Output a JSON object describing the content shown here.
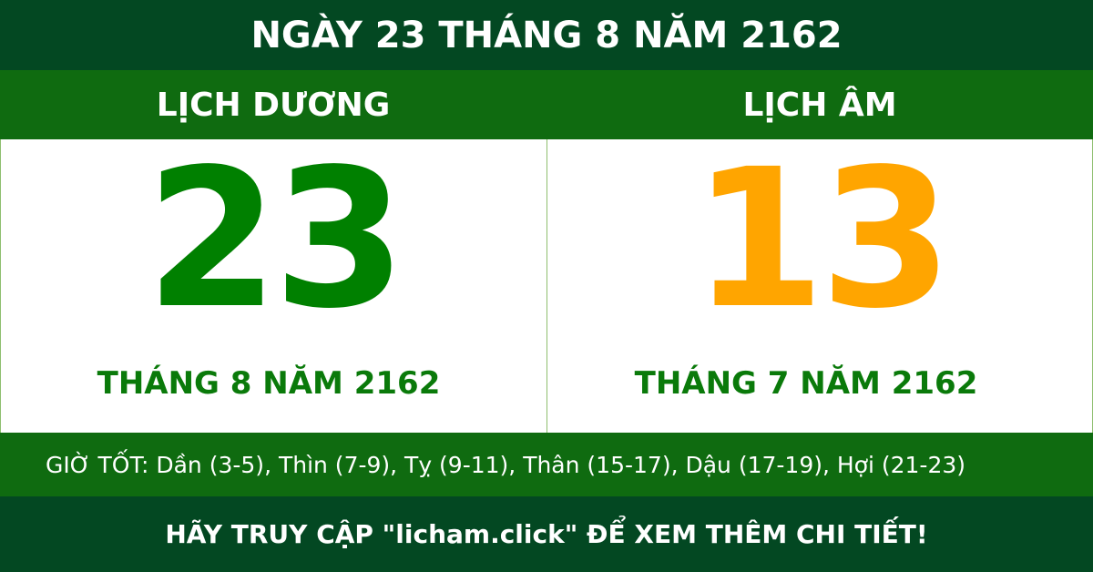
{
  "title": "NGÀY 23 THÁNG 8 NĂM 2162",
  "solar": {
    "heading": "LỊCH DƯƠNG",
    "day": "23",
    "month_year": "THÁNG 8 NĂM 2162",
    "color": "#008000"
  },
  "lunar": {
    "heading": "LỊCH ÂM",
    "day": "13",
    "month_year": "THÁNG 7 NĂM 2162",
    "color": "#ffa500"
  },
  "good_hours": "GIỜ TỐT: Dần (3-5), Thìn (7-9), Tỵ (9-11), Thân (15-17), Dậu (17-19), Hợi (21-23)",
  "footer": "HÃY TRUY CẬP \"licham.click\" ĐỂ XEM THÊM CHI TIẾT!"
}
